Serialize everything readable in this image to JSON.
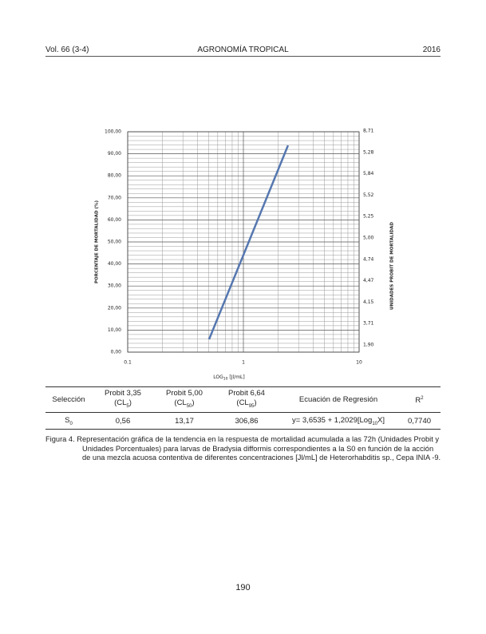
{
  "header": {
    "left": "Vol. 66 (3-4)",
    "center": "AGRONOMÍA TROPICAL",
    "right": "2016"
  },
  "chart_data": {
    "type": "line",
    "ylabel": "PORCENTAJE DE MORTALIDAD (%)",
    "y2label": "UNIDADES PROBIT DE MORTALIDAD",
    "xlabel": {
      "text": "LOG",
      "sub": "10",
      "rest": " [Jl/mL]"
    },
    "x": [
      0.505,
      2.43
    ],
    "series": [
      {
        "name": "S0",
        "color": "#5577b0",
        "values": [
          5.8,
          93.8
        ]
      }
    ],
    "xlim": [
      0.1,
      10
    ],
    "xticks": [
      0.1,
      1,
      10
    ],
    "log_x": true,
    "ylim": [
      0,
      100
    ],
    "yticks": [
      {
        "value": 0,
        "label": "0,00"
      },
      {
        "value": 10,
        "label": "10,00"
      },
      {
        "value": 20,
        "label": "20,00"
      },
      {
        "value": 30,
        "label": "30,00"
      },
      {
        "value": 40,
        "label": "40,00"
      },
      {
        "value": 50,
        "label": "50,00"
      },
      {
        "value": 60,
        "label": "60,00"
      },
      {
        "value": 70,
        "label": "70,00"
      },
      {
        "value": 80,
        "label": "80,00"
      },
      {
        "value": 90,
        "label": "90,00"
      },
      {
        "value": 100,
        "label": "100,00"
      }
    ],
    "y2_labels": [
      "8,71",
      "5,28",
      "5,84",
      "5,52",
      "5,25",
      "5,00",
      "4,74",
      "4,47",
      "4,15",
      "3,71",
      "1,90"
    ],
    "grid": true
  },
  "table": {
    "header": [
      [
        "Selección"
      ],
      [
        "Probit 3,35",
        "(CL",
        "5",
        ")"
      ],
      [
        "Probit 5,00",
        "(CL",
        "50",
        ")"
      ],
      [
        "Probit 6,64",
        "(CL",
        "95",
        ")"
      ],
      [
        "Ecuación de Regresión"
      ],
      [
        "R",
        "2"
      ]
    ],
    "row": [
      [
        "S",
        "0"
      ],
      [
        "0,56"
      ],
      [
        "13,17"
      ],
      [
        "306,86"
      ],
      [
        "y= 3,6535 + 1,2029[Log",
        "10",
        "X]"
      ],
      [
        "0,7740"
      ]
    ]
  },
  "caption": {
    "label": "Figura 4.",
    "text": "Representación gráfica de la tendencia en la respuesta de mortalidad acumulada a las 72h (Unidades Probit y Unidades Porcentuales) para larvas de Bradysia difformis correspondientes a la S0 en función de la acción de una mezcla acuosa contentiva de diferentes concentraciones [Jl/mL] de Heterorhabditis sp., Cepa INIA -9."
  },
  "page_number": "190"
}
